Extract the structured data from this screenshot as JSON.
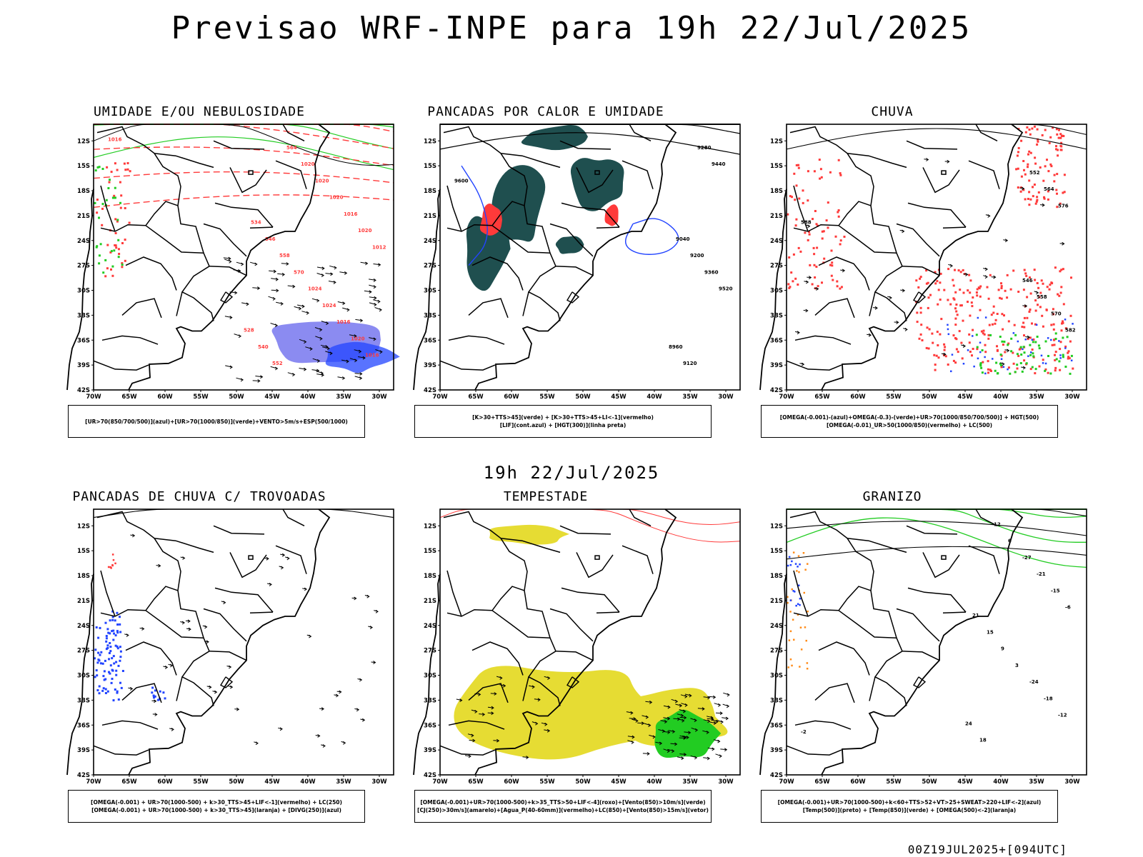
{
  "header": {
    "title": "Previsao WRF-INPE  para 19h 22/Jul/2025",
    "subtitle": "19h 22/Jul/2025",
    "footer": "00Z19JUL2025+[094UTC]"
  },
  "axes": {
    "lat_ticks": [
      "12S",
      "15S",
      "18S",
      "21S",
      "24S",
      "27S",
      "30S",
      "33S",
      "36S",
      "39S",
      "42S"
    ],
    "lon_ticks": [
      "70W",
      "65W",
      "60W",
      "55W",
      "50W",
      "45W",
      "40W",
      "35W",
      "30W"
    ],
    "lon_range": [
      -70,
      -28
    ],
    "lat_range": [
      -42,
      -10
    ]
  },
  "colors": {
    "red": "#ff3a3a",
    "green": "#22cc22",
    "blue": "#2244ff",
    "purple": "#7777ee",
    "yellow": "#e6dc33",
    "orange": "#ff8c1a",
    "dark_teal": "#1f4f4f",
    "black": "#000000"
  },
  "panels": [
    {
      "title": "UMIDADE E/OU NEBULOSIDADE",
      "legend": [
        "[UR>70(850/700/500)](azul)+[UR>70(1000/850)](verde)+VENTO>5m/s+ESP(500/1000)"
      ],
      "contour_labels": [
        "1016",
        "1012",
        "1016",
        "1020",
        "1020",
        "1016",
        "1016",
        "1020",
        "1024",
        "1020",
        "1024",
        "1020",
        "570",
        "564",
        "558",
        "552",
        "546",
        "540",
        "534",
        "528"
      ]
    },
    {
      "title": "PANCADAS POR CALOR E UMIDADE",
      "legend": [
        "[K>30+TTS>45](verde) + [K>30+TTS>45+LI<-1](vermelho)",
        "[LIF](cont.azul) + [HGT(300)](linha preta)"
      ],
      "contour_labels": [
        "9600",
        "9520",
        "9440",
        "9360",
        "9280",
        "9200",
        "9120",
        "9040",
        "8960"
      ]
    },
    {
      "title": "CHUVA",
      "legend": [
        "[OMEGA(-0.001)-(azul)+OMEGA(-0.3)-(verde)+UR>70(1000/850/700/500)] + HGT(500)",
        "[OMEGA(-0.01)_UR>50(1000/850)(vermelho) + LC(500)"
      ],
      "contour_labels": [
        "588",
        "582",
        "576",
        "570",
        "564",
        "558",
        "552",
        "546"
      ]
    },
    {
      "title": "PANCADAS DE CHUVA C/ TROVOADAS",
      "legend": [
        "[OMEGA(-0.001) + UR>70(1000-500) + k>30_TTS>45+LIF<-1](vermelho) + LC(250)",
        "[OMEGA(-0.001) + UR>70(1000-500) + k>30_TTS>45](laranja) + [DIVG(250)](azul)"
      ],
      "contour_labels": []
    },
    {
      "title": "TEMPESTADE",
      "legend": [
        "[OMEGA(-0.001)+UR>70(1000-500)+k>35_TTS>50+LIF<-4](roxo)+[Vento(850)>10m/s](verde)",
        "[CJ(250)>30m/s](amarelo)+[Agua_P(40-60mm)](vermelho)+LC(850)+[Vento(850)>15m/s](vetor)"
      ],
      "contour_labels": []
    },
    {
      "title": "GRANIZO",
      "legend": [
        "[OMEGA(-0.001)+UR>70(1000-500)+k<60+TTS>52+VT>25+SWEAT>220+LIF<-2](azul)",
        "[Temp(500)](preto) + [Temp(850)](verde) + [OMEGA(500)<-2](laranja)"
      ],
      "contour_labels": [
        "-2",
        "-6",
        "-12",
        "-15",
        "-18",
        "-21",
        "-24",
        "-27",
        "3",
        "6",
        "9",
        "12",
        "15",
        "18",
        "21",
        "24"
      ]
    }
  ]
}
